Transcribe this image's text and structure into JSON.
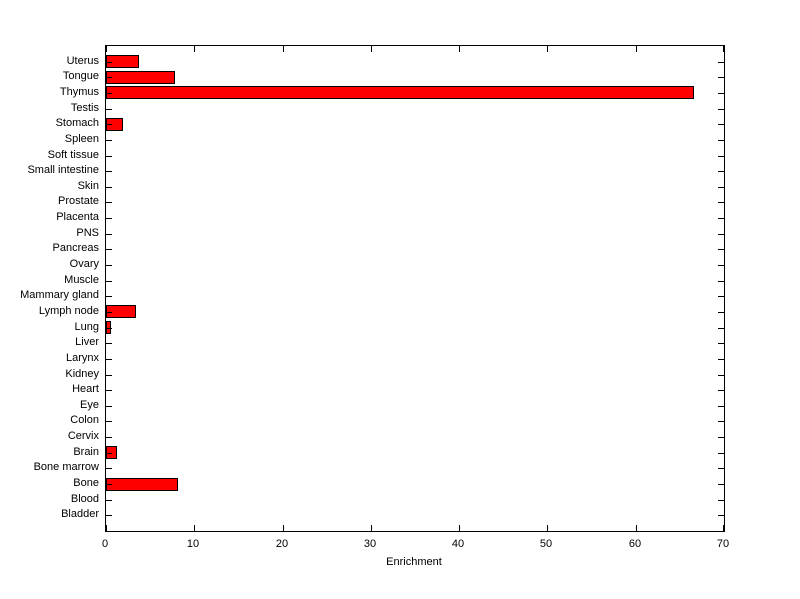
{
  "chart_data": {
    "type": "bar",
    "orientation": "horizontal",
    "title": "",
    "xlabel": "Enrichment",
    "ylabel": "",
    "xlim": [
      0,
      70
    ],
    "xticks": [
      0,
      10,
      20,
      30,
      40,
      50,
      60,
      70
    ],
    "grid": false,
    "legend": null,
    "bar_color": "#FF0000",
    "bar_edge_color": "#000000",
    "categories": [
      "Uterus",
      "Tongue",
      "Thymus",
      "Testis",
      "Stomach",
      "Spleen",
      "Soft tissue",
      "Small intestine",
      "Skin",
      "Prostate",
      "Placenta",
      "PNS",
      "Pancreas",
      "Ovary",
      "Muscle",
      "Mammary gland",
      "Lymph node",
      "Lung",
      "Liver",
      "Larynx",
      "Kidney",
      "Heart",
      "Eye",
      "Colon",
      "Cervix",
      "Brain",
      "Bone marrow",
      "Bone",
      "Blood",
      "Bladder"
    ],
    "values": [
      3.7,
      7.8,
      66.6,
      0,
      1.9,
      0,
      0,
      0,
      0,
      0,
      0,
      0,
      0,
      0,
      0,
      0,
      3.4,
      0.6,
      0,
      0,
      0,
      0,
      0,
      0,
      0,
      1.3,
      0,
      8.2,
      0,
      0
    ]
  }
}
